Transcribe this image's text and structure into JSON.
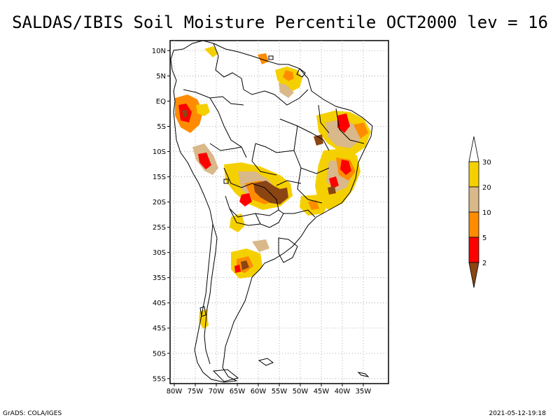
{
  "title": "SALDAS/IBIS Soil Moisture Percentile OCT2000 lev = 16",
  "footer_left": "GrADS: COLA/IGES",
  "footer_right": "2021-05-12-19:18",
  "map": {
    "lon_range": [
      -81,
      -29
    ],
    "lat_range": [
      -56,
      12
    ],
    "lat_ticks": [
      {
        "value": 10,
        "label": "10N"
      },
      {
        "value": 5,
        "label": "5N"
      },
      {
        "value": 0,
        "label": "EQ"
      },
      {
        "value": -5,
        "label": "5S"
      },
      {
        "value": -10,
        "label": "10S"
      },
      {
        "value": -15,
        "label": "15S"
      },
      {
        "value": -20,
        "label": "20S"
      },
      {
        "value": -25,
        "label": "25S"
      },
      {
        "value": -30,
        "label": "30S"
      },
      {
        "value": -35,
        "label": "35S"
      },
      {
        "value": -40,
        "label": "40S"
      },
      {
        "value": -45,
        "label": "45S"
      },
      {
        "value": -50,
        "label": "50S"
      },
      {
        "value": -55,
        "label": "55S"
      }
    ],
    "lon_ticks": [
      {
        "value": -80,
        "label": "80W"
      },
      {
        "value": -75,
        "label": "75W"
      },
      {
        "value": -70,
        "label": "70W"
      },
      {
        "value": -65,
        "label": "65W"
      },
      {
        "value": -60,
        "label": "60W"
      },
      {
        "value": -55,
        "label": "55W"
      },
      {
        "value": -50,
        "label": "50W"
      },
      {
        "value": -45,
        "label": "45W"
      },
      {
        "value": -40,
        "label": "40W"
      },
      {
        "value": -35,
        "label": "35W"
      }
    ],
    "grid": "dotted"
  },
  "legend": {
    "bins": [
      {
        "label": "",
        "color": "#ffffff"
      },
      {
        "label": "30",
        "color": "#f5d000"
      },
      {
        "label": "20",
        "color": "#d9b88a"
      },
      {
        "label": "10",
        "color": "#ff8c00"
      },
      {
        "label": "5",
        "color": "#ff0000"
      },
      {
        "label": "2",
        "color": "#8b4513"
      }
    ]
  },
  "colors": {
    "p30": "#f5d000",
    "p20": "#d9b88a",
    "p10": "#ff8c00",
    "p5": "#ff0000",
    "p2": "#8b4513"
  }
}
